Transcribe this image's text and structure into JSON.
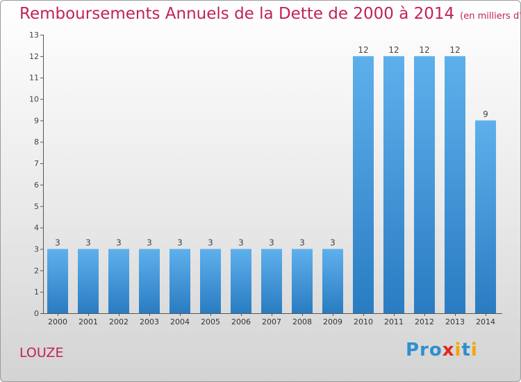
{
  "chart_data": {
    "type": "bar",
    "title": "Remboursements Annuels de la Dette de 2000 à 2014",
    "unit": "(en milliers d'€)",
    "categories": [
      "2000",
      "2001",
      "2002",
      "2003",
      "2004",
      "2005",
      "2006",
      "2007",
      "2008",
      "2009",
      "2010",
      "2011",
      "2012",
      "2013",
      "2014"
    ],
    "values": [
      3,
      3,
      3,
      3,
      3,
      3,
      3,
      3,
      3,
      3,
      12,
      12,
      12,
      12,
      9
    ],
    "value_labels": [
      "3",
      "3",
      "3",
      "3",
      "3",
      "3",
      "3",
      "3",
      "3",
      "3",
      "12",
      "12",
      "12",
      "12",
      "9"
    ],
    "ylim": [
      0,
      13
    ],
    "yticks": [
      "0",
      "1",
      "2",
      "3",
      "4",
      "5",
      "6",
      "7",
      "8",
      "9",
      "10",
      "11",
      "12",
      "13"
    ],
    "grid": false,
    "bar_color": "#4a9fe0"
  },
  "footer": {
    "city": "LOUZE",
    "logo_parts": [
      "Pro",
      "x",
      "i",
      "t",
      "i"
    ]
  }
}
